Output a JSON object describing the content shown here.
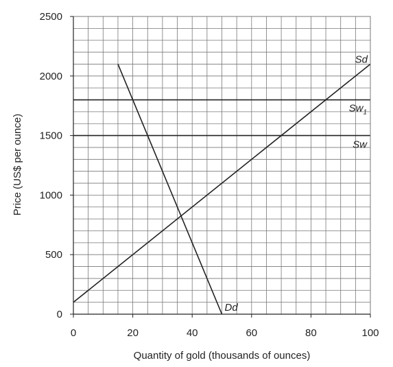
{
  "chart_data": {
    "type": "line",
    "title": "",
    "xlabel": "Quantity of gold (thousands of ounces)",
    "ylabel": "Price (US$ per ounce)",
    "xlim": [
      0,
      100
    ],
    "ylim": [
      0,
      2500
    ],
    "xticks": [
      "0",
      "20",
      "40",
      "60",
      "80",
      "100"
    ],
    "yticks": [
      "0",
      "500",
      "1000",
      "1500",
      "2000",
      "2500"
    ],
    "grid": true,
    "grid_minor_x_step": 5,
    "grid_minor_y_step": 100,
    "series": [
      {
        "name": "Dd",
        "label_main": "Dd",
        "label_sub": "",
        "x": [
          15,
          50
        ],
        "y": [
          2100,
          0
        ]
      },
      {
        "name": "Sd",
        "label_main": "Sd",
        "label_sub": "",
        "x": [
          0,
          100
        ],
        "y": [
          100,
          2100
        ]
      },
      {
        "name": "Sw1",
        "label_main": "Sw",
        "label_sub": "1",
        "x": [
          0,
          100
        ],
        "y": [
          1800,
          1800
        ]
      },
      {
        "name": "Sw",
        "label_main": "Sw",
        "label_sub": "",
        "x": [
          0,
          100
        ],
        "y": [
          1500,
          1500
        ]
      }
    ],
    "colors": {
      "grid": "#777777",
      "line": "#222222"
    }
  }
}
